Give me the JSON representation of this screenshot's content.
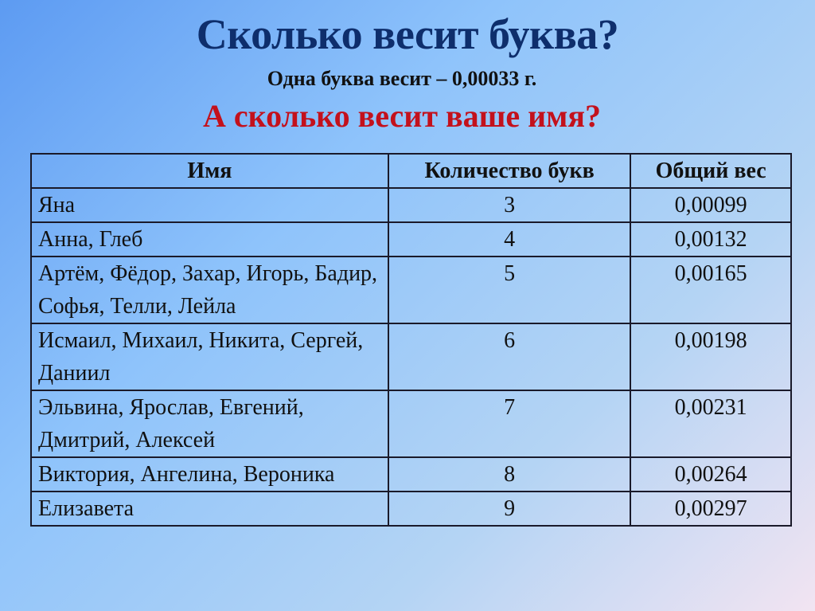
{
  "title": "Сколько весит буква?",
  "subtitle": "Одна буква весит – 0,00033 г.",
  "question": "А сколько весит ваше имя?",
  "colors": {
    "title": "#0e2e6c",
    "question": "#c3111c"
  },
  "table": {
    "headers": [
      "Имя",
      "Количество букв",
      "Общий вес"
    ],
    "rows": [
      {
        "names": "Яна",
        "count": "3",
        "weight": "0,00099"
      },
      {
        "names": "Анна, Глеб",
        "count": "4",
        "weight": "0,00132"
      },
      {
        "names": "Артём, Фёдор, Захар, Игорь, Бадир, Софья, Телли, Лейла",
        "count": "5",
        "weight": "0,00165"
      },
      {
        "names": "Исмаил, Михаил, Никита, Сергей, Даниил",
        "count": "6",
        "weight": "0,00198"
      },
      {
        "names": "Эльвина, Ярослав, Евгений, Дмитрий, Алексей",
        "count": "7",
        "weight": "0,00231"
      },
      {
        "names": "Виктория, Ангелина, Вероника",
        "count": "8",
        "weight": "0,00264"
      },
      {
        "names": "Елизавета",
        "count": "9",
        "weight": "0,00297"
      }
    ]
  }
}
